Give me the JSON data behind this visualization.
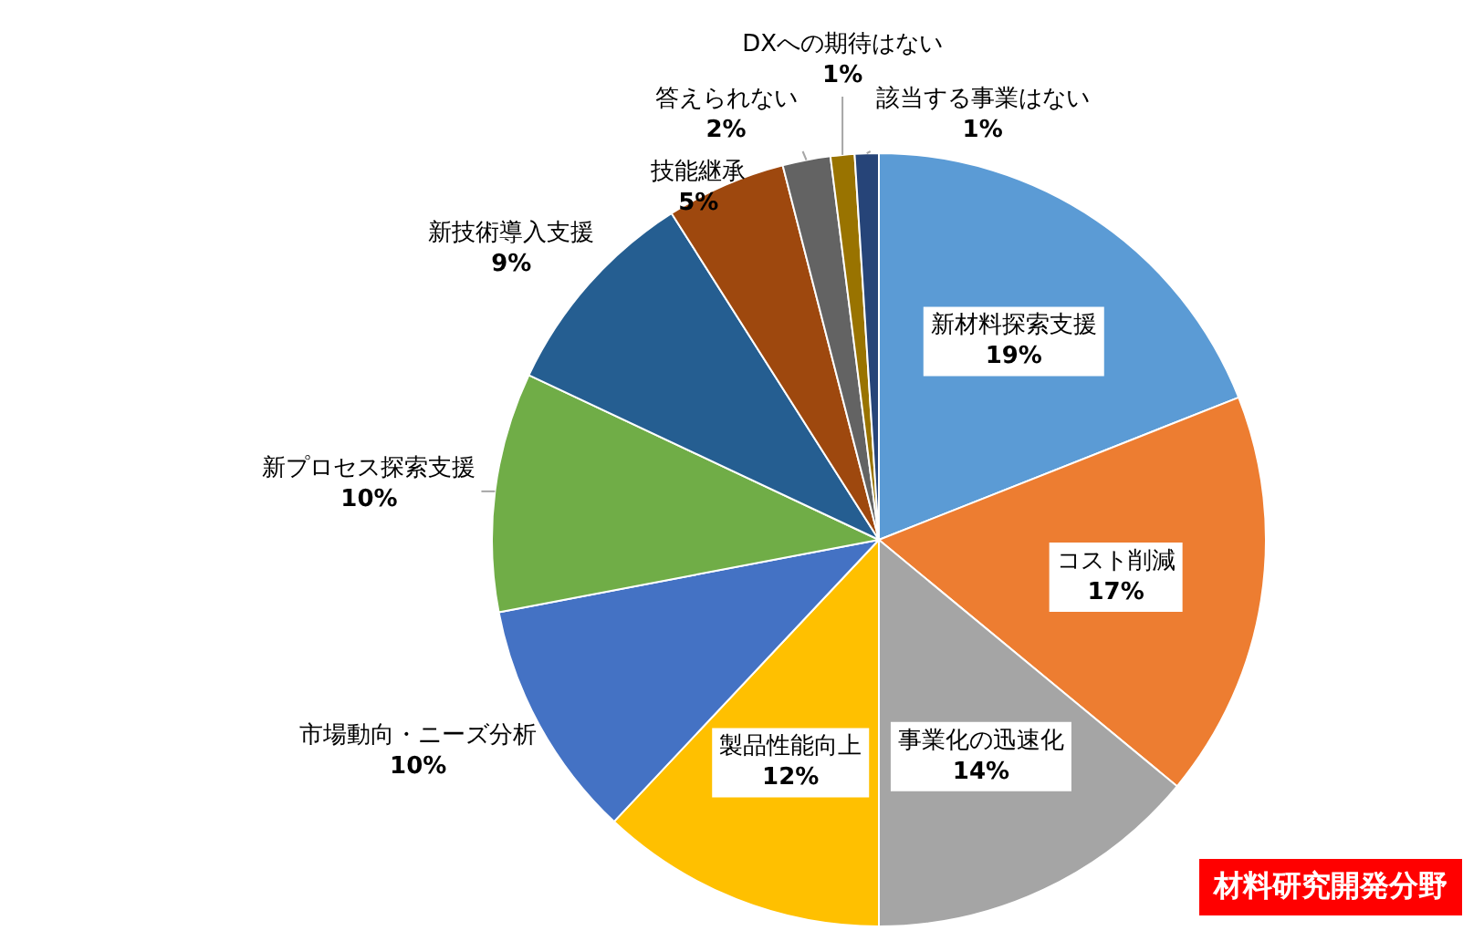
{
  "chart_data": {
    "type": "pie",
    "categories": [
      "新材料探索支援",
      "コスト削減",
      "事業化の迅速化",
      "製品性能向上",
      "市場動向・ニーズ分析",
      "新プロセス探索支援",
      "新技術導入支援",
      "技能継承",
      "答えられない",
      "DXへの期待はない",
      "該当する事業はない"
    ],
    "values": [
      19,
      17,
      14,
      12,
      10,
      10,
      9,
      5,
      2,
      1,
      1
    ],
    "value_labels": [
      "19%",
      "17%",
      "14%",
      "12%",
      "10%",
      "10%",
      "9%",
      "5%",
      "2%",
      "1%",
      "1%"
    ],
    "colors": [
      "#5b9bd5",
      "#ed7d31",
      "#a5a5a5",
      "#ffc000",
      "#4472c4",
      "#70ad47",
      "#255e91",
      "#9e480e",
      "#636363",
      "#997300",
      "#264478"
    ],
    "legend": false,
    "annotations": [
      "材料研究開発分野"
    ]
  }
}
